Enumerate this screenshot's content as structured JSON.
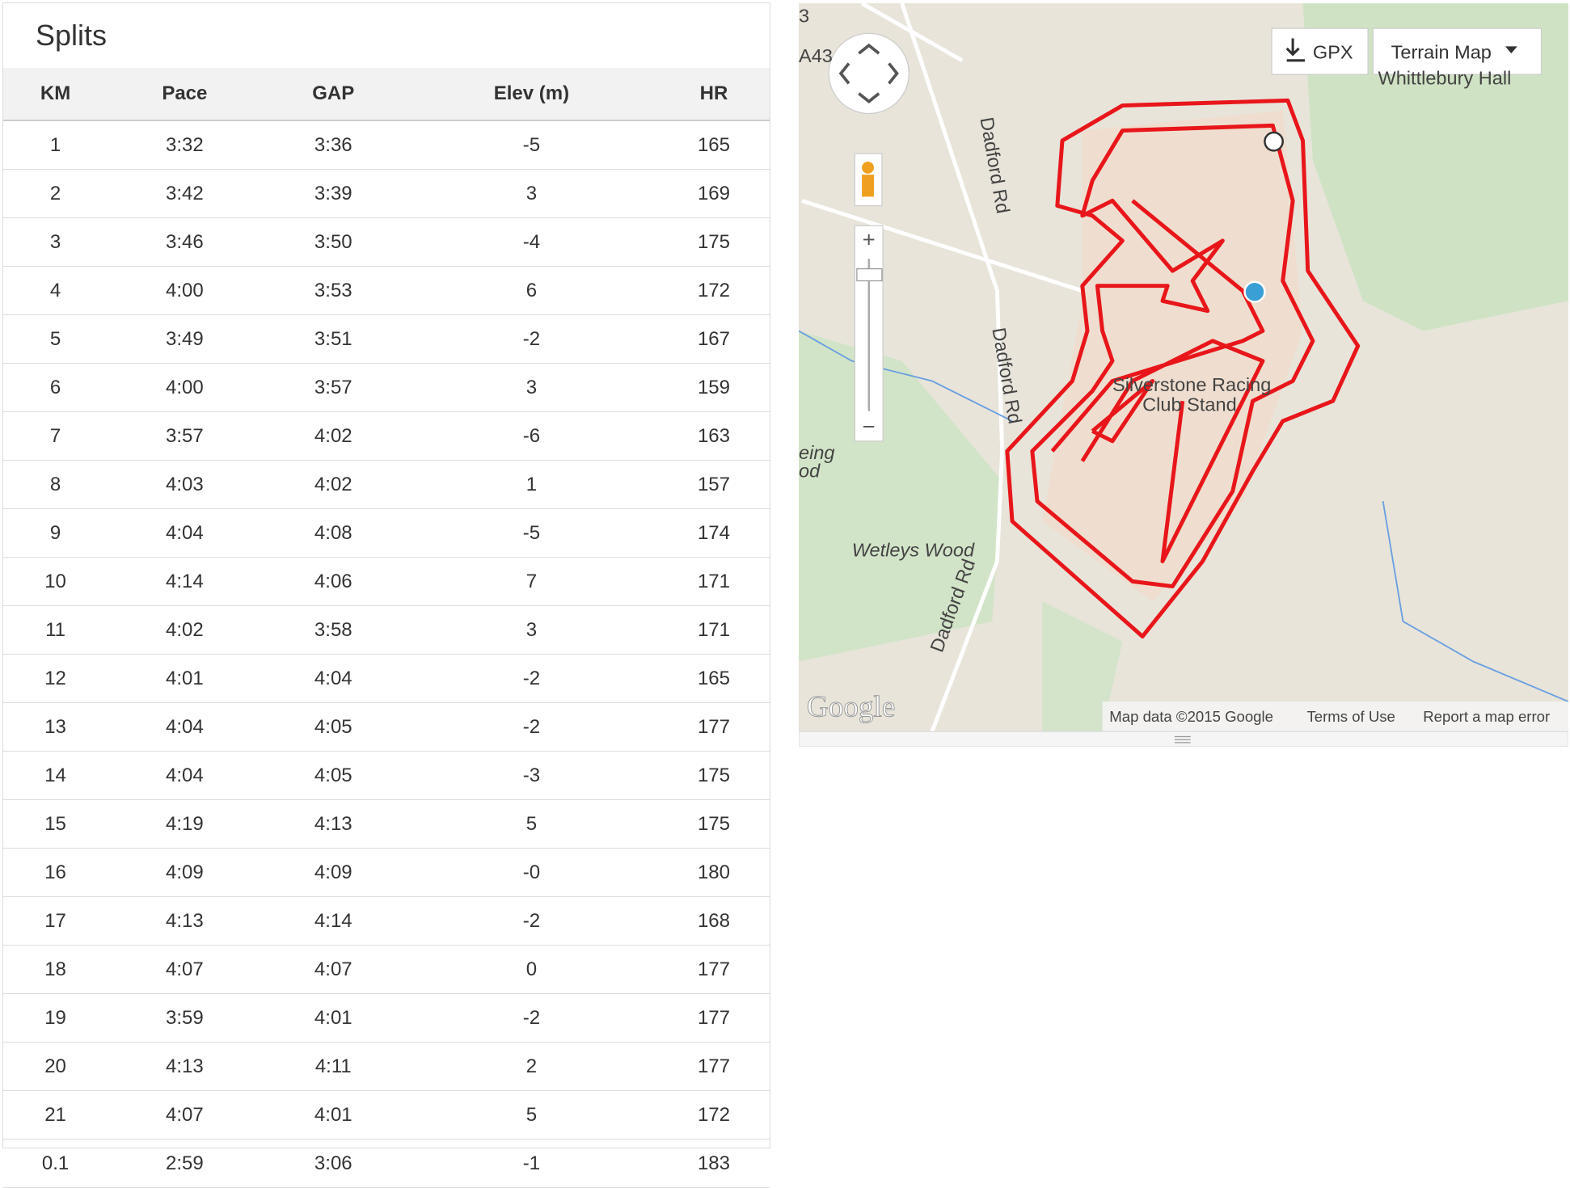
{
  "splits": {
    "title": "Splits",
    "columns": [
      "KM",
      "Pace",
      "GAP",
      "Elev (m)",
      "HR"
    ],
    "rows": [
      [
        "1",
        "3:32",
        "3:36",
        "-5",
        "165"
      ],
      [
        "2",
        "3:42",
        "3:39",
        "3",
        "169"
      ],
      [
        "3",
        "3:46",
        "3:50",
        "-4",
        "175"
      ],
      [
        "4",
        "4:00",
        "3:53",
        "6",
        "172"
      ],
      [
        "5",
        "3:49",
        "3:51",
        "-2",
        "167"
      ],
      [
        "6",
        "4:00",
        "3:57",
        "3",
        "159"
      ],
      [
        "7",
        "3:57",
        "4:02",
        "-6",
        "163"
      ],
      [
        "8",
        "4:03",
        "4:02",
        "1",
        "157"
      ],
      [
        "9",
        "4:04",
        "4:08",
        "-5",
        "174"
      ],
      [
        "10",
        "4:14",
        "4:06",
        "7",
        "171"
      ],
      [
        "11",
        "4:02",
        "3:58",
        "3",
        "171"
      ],
      [
        "12",
        "4:01",
        "4:04",
        "-2",
        "165"
      ],
      [
        "13",
        "4:04",
        "4:05",
        "-2",
        "177"
      ],
      [
        "14",
        "4:04",
        "4:05",
        "-3",
        "175"
      ],
      [
        "15",
        "4:19",
        "4:13",
        "5",
        "175"
      ],
      [
        "16",
        "4:09",
        "4:09",
        "-0",
        "180"
      ],
      [
        "17",
        "4:13",
        "4:14",
        "-2",
        "168"
      ],
      [
        "18",
        "4:07",
        "4:07",
        "0",
        "177"
      ],
      [
        "19",
        "3:59",
        "4:01",
        "-2",
        "177"
      ],
      [
        "20",
        "4:13",
        "4:11",
        "2",
        "177"
      ],
      [
        "21",
        "4:07",
        "4:01",
        "5",
        "172"
      ],
      [
        "0.1",
        "2:59",
        "3:06",
        "-1",
        "183"
      ]
    ]
  },
  "map": {
    "gpx_button": "GPX",
    "map_type_button": "Terrain Map",
    "labels": [
      "3",
      "A43",
      "Whittlebury Hall",
      "Dadford Rd",
      "Dadford Rd",
      "Dadford Rd",
      "Silverstone Racing",
      "Club Stand",
      "Wetleys Wood",
      "eing",
      "od"
    ],
    "logo": "Google",
    "footer": [
      "Map data ©2015 Google",
      "Terms of Use",
      "Report a map error"
    ]
  }
}
